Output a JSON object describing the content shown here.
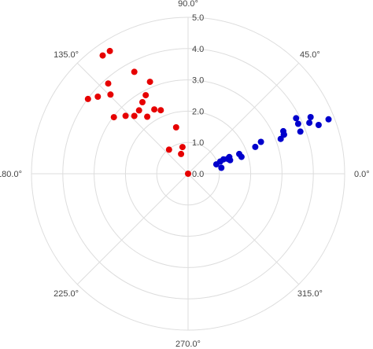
{
  "chart_data": {
    "type": "scatter",
    "coordinate_system": "polar",
    "angular_axis": {
      "unit": "degrees",
      "tick_labels": [
        "0.0°",
        "45.0°",
        "90.0°",
        "135.0°",
        "180.0°",
        "225.0°",
        "270.0°",
        "315.0°"
      ]
    },
    "radial_axis": {
      "range": [
        0,
        5
      ],
      "tick_labels": [
        "0.0",
        "1.0",
        "2.0",
        "3.0",
        "4.0",
        "5.0"
      ],
      "label_angle_deg": 90
    },
    "grid": true,
    "series": [
      {
        "color": "#e60000",
        "points": [
          {
            "theta": 90.0,
            "r": 0.0
          },
          {
            "theta": 101.9,
            "r": 0.87
          },
          {
            "theta": 109.5,
            "r": 0.67
          },
          {
            "theta": 128.4,
            "r": 0.98
          },
          {
            "theta": 104.5,
            "r": 1.53
          },
          {
            "theta": 113.2,
            "r": 2.21
          },
          {
            "theta": 125.6,
            "r": 2.24
          },
          {
            "theta": 117.7,
            "r": 2.32
          },
          {
            "theta": 132.9,
            "r": 2.52
          },
          {
            "theta": 127.7,
            "r": 2.56
          },
          {
            "theta": 122.5,
            "r": 2.71
          },
          {
            "theta": 137.2,
            "r": 2.72
          },
          {
            "theta": 118.3,
            "r": 2.85
          },
          {
            "theta": 112.5,
            "r": 3.18
          },
          {
            "theta": 142.7,
            "r": 2.98
          },
          {
            "theta": 117.8,
            "r": 3.68
          },
          {
            "theta": 134.4,
            "r": 3.54
          },
          {
            "theta": 131.5,
            "r": 3.85
          },
          {
            "theta": 139.5,
            "r": 3.79
          },
          {
            "theta": 143.2,
            "r": 3.99
          },
          {
            "theta": 122.5,
            "r": 4.65
          },
          {
            "theta": 125.8,
            "r": 4.66
          }
        ]
      },
      {
        "color": "#0000cc",
        "points": [
          {
            "theta": 10.0,
            "r": 1.08
          },
          {
            "theta": 18.4,
            "r": 0.95
          },
          {
            "theta": 20.8,
            "r": 1.1
          },
          {
            "theta": 22.1,
            "r": 1.22
          },
          {
            "theta": 20.6,
            "r": 1.35
          },
          {
            "theta": 22.0,
            "r": 1.42
          },
          {
            "theta": 17.8,
            "r": 1.41
          },
          {
            "theta": 21.1,
            "r": 1.75
          },
          {
            "theta": 17.5,
            "r": 1.79
          },
          {
            "theta": 21.8,
            "r": 2.31
          },
          {
            "theta": 23.6,
            "r": 2.54
          },
          {
            "theta": 20.6,
            "r": 3.16
          },
          {
            "theta": 22.2,
            "r": 3.3
          },
          {
            "theta": 22.2,
            "r": 3.31
          },
          {
            "theta": 24.1,
            "r": 3.33
          },
          {
            "theta": 20.6,
            "r": 3.83
          },
          {
            "theta": 24.4,
            "r": 3.86
          },
          {
            "theta": 27.2,
            "r": 3.88
          },
          {
            "theta": 22.8,
            "r": 4.2
          },
          {
            "theta": 24.8,
            "r": 4.31
          },
          {
            "theta": 20.5,
            "r": 4.45
          },
          {
            "theta": 21.2,
            "r": 4.81
          }
        ]
      }
    ]
  }
}
